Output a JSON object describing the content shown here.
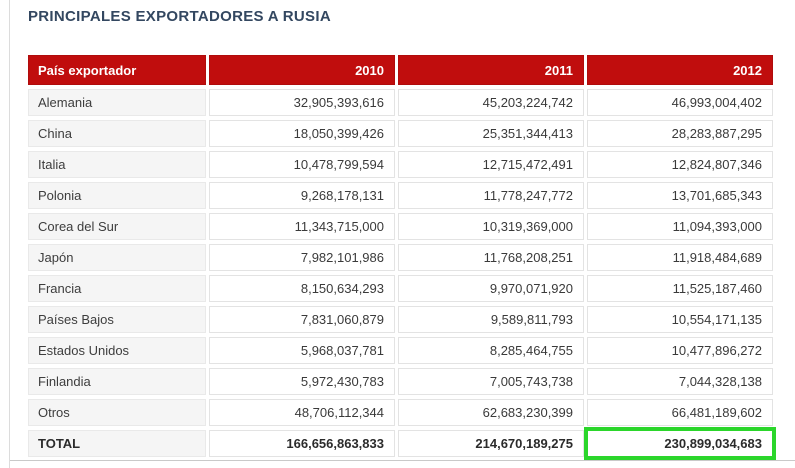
{
  "page": {
    "title": "PRINCIPALES EXPORTADORES A RUSIA"
  },
  "colors": {
    "title_text": "#334760",
    "header_background": "#c00d0d",
    "header_text": "#ffffff",
    "highlight_box": "#2bd62b"
  },
  "annotation": {
    "highlighted_cell": "TOTAL 2012",
    "highlighted_value": "230,899,034,683"
  },
  "table": {
    "columns": [
      "País exportador",
      "2010",
      "2011",
      "2012"
    ],
    "rows": [
      {
        "country": "Alemania",
        "v2010": "32,905,393,616",
        "v2011": "45,203,224,742",
        "v2012": "46,993,004,402"
      },
      {
        "country": "China",
        "v2010": "18,050,399,426",
        "v2011": "25,351,344,413",
        "v2012": "28,283,887,295"
      },
      {
        "country": "Italia",
        "v2010": "10,478,799,594",
        "v2011": "12,715,472,491",
        "v2012": "12,824,807,346"
      },
      {
        "country": "Polonia",
        "v2010": "9,268,178,131",
        "v2011": "11,778,247,772",
        "v2012": "13,701,685,343"
      },
      {
        "country": "Corea del Sur",
        "v2010": "11,343,715,000",
        "v2011": "10,319,369,000",
        "v2012": "11,094,393,000"
      },
      {
        "country": "Japón",
        "v2010": "7,982,101,986",
        "v2011": "11,768,208,251",
        "v2012": "11,918,484,689"
      },
      {
        "country": "Francia",
        "v2010": "8,150,634,293",
        "v2011": "9,970,071,920",
        "v2012": "11,525,187,460"
      },
      {
        "country": "Países Bajos",
        "v2010": "7,831,060,879",
        "v2011": "9,589,811,793",
        "v2012": "10,554,171,135"
      },
      {
        "country": "Estados Unidos",
        "v2010": "5,968,037,781",
        "v2011": "8,285,464,755",
        "v2012": "10,477,896,272"
      },
      {
        "country": "Finlandia",
        "v2010": "5,972,430,783",
        "v2011": "7,005,743,738",
        "v2012": "7,044,328,138"
      },
      {
        "country": "Otros",
        "v2010": "48,706,112,344",
        "v2011": "62,683,230,399",
        "v2012": "66,481,189,602"
      }
    ],
    "total": {
      "label": "TOTAL",
      "v2010": "166,656,863,833",
      "v2011": "214,670,189,275",
      "v2012": "230,899,034,683"
    }
  },
  "chart_data": {
    "type": "table",
    "title": "PRINCIPALES EXPORTADORES A RUSIA",
    "columns": [
      "País exportador",
      "2010",
      "2011",
      "2012"
    ],
    "rows": [
      [
        "Alemania",
        32905393616,
        45203224742,
        46993004402
      ],
      [
        "China",
        18050399426,
        25351344413,
        28283887295
      ],
      [
        "Italia",
        10478799594,
        12715472491,
        12824807346
      ],
      [
        "Polonia",
        9268178131,
        11778247772,
        13701685343
      ],
      [
        "Corea del Sur",
        11343715000,
        10319369000,
        11094393000
      ],
      [
        "Japón",
        7982101986,
        11768208251,
        11918484689
      ],
      [
        "Francia",
        8150634293,
        9970071920,
        11525187460
      ],
      [
        "Países Bajos",
        7831060879,
        9589811793,
        10554171135
      ],
      [
        "Estados Unidos",
        5968037781,
        8285464755,
        10477896272
      ],
      [
        "Finlandia",
        5972430783,
        7005743738,
        7044328138
      ],
      [
        "Otros",
        48706112344,
        62683230399,
        66481189602
      ]
    ],
    "total_row": [
      "TOTAL",
      166656863833,
      214670189275,
      230899034683
    ],
    "highlight": {
      "row": "TOTAL",
      "column": "2012",
      "color": "#2bd62b"
    }
  }
}
